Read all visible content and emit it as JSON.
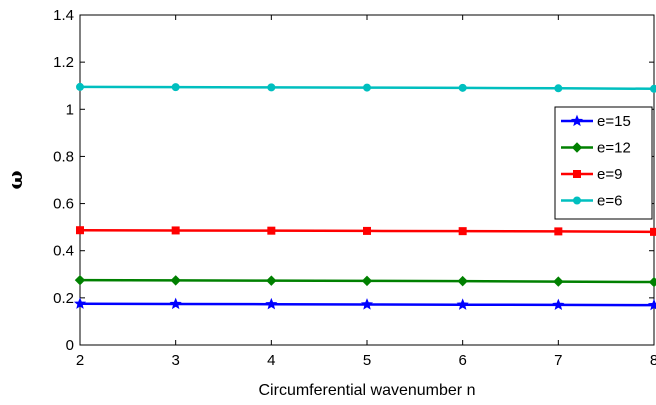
{
  "chart_data": {
    "type": "line",
    "title": "",
    "xlabel": "Circumferential wavenumber n",
    "ylabel": "ω",
    "xlim": [
      2,
      8
    ],
    "ylim": [
      0,
      1.4
    ],
    "x_ticks": [
      "2",
      "3",
      "4",
      "5",
      "6",
      "7",
      "8"
    ],
    "y_ticks": [
      "0",
      "0.2",
      "0.4",
      "0.6",
      "0.8",
      "1",
      "1.2",
      "1.4"
    ],
    "grid": false,
    "legend_position": "right",
    "x": [
      2,
      3,
      4,
      5,
      6,
      7,
      8
    ],
    "series": [
      {
        "name": "e=15",
        "color": "#0000ff",
        "marker": "star",
        "values": [
          0.175,
          0.174,
          0.173,
          0.172,
          0.171,
          0.17,
          0.169
        ]
      },
      {
        "name": "e=12",
        "color": "#008000",
        "marker": "diamond",
        "values": [
          0.275,
          0.274,
          0.273,
          0.272,
          0.271,
          0.269,
          0.267
        ]
      },
      {
        "name": "e=9",
        "color": "#ff0000",
        "marker": "square",
        "values": [
          0.487,
          0.486,
          0.485,
          0.484,
          0.483,
          0.482,
          0.48
        ]
      },
      {
        "name": "e=6",
        "color": "#00bfbf",
        "marker": "circle",
        "values": [
          1.095,
          1.094,
          1.093,
          1.092,
          1.091,
          1.089,
          1.087
        ]
      }
    ]
  }
}
